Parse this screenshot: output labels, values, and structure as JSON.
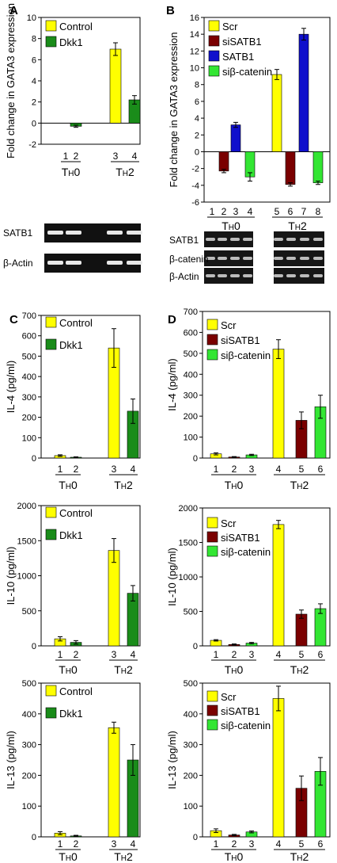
{
  "colors": {
    "control": "#ffff00",
    "dkk1": "#1a8c1a",
    "scr": "#ffff00",
    "siSATB1": "#7a0000",
    "SATB1": "#1010cc",
    "sibcat": "#33e633"
  },
  "chart_data": [
    {
      "panel": "A",
      "type": "bar",
      "ylabel": "Fold change in GATA3 expression",
      "ylim": [
        -2,
        10
      ],
      "yticks": [
        -2,
        0,
        2,
        4,
        6,
        8,
        10
      ],
      "categories": [
        "1",
        "2",
        "3",
        "4"
      ],
      "groups": [
        "TH0",
        "TH2"
      ],
      "series": [
        {
          "name": "Control",
          "color": "#ffff00",
          "points": [
            {
              "cat": "1",
              "value": 0
            },
            {
              "cat": "3",
              "value": 7.0,
              "err": 0.6
            }
          ]
        },
        {
          "name": "Dkk1",
          "color": "#1a8c1a",
          "points": [
            {
              "cat": "2",
              "value": -0.3,
              "err": 0.1
            },
            {
              "cat": "4",
              "value": 2.2,
              "err": 0.4
            }
          ]
        }
      ],
      "gel_labels": [
        "SATB1",
        "β-Actin"
      ]
    },
    {
      "panel": "B",
      "type": "bar",
      "ylabel": "Fold change in GATA3 expression",
      "ylim": [
        -6,
        16
      ],
      "yticks": [
        -6,
        -4,
        -2,
        0,
        2,
        4,
        6,
        8,
        10,
        12,
        14,
        16
      ],
      "categories": [
        "1",
        "2",
        "3",
        "4",
        "5",
        "6",
        "7",
        "8"
      ],
      "groups": [
        "TH0",
        "TH2"
      ],
      "series": [
        {
          "name": "Scr",
          "color": "#ffff00",
          "points": [
            {
              "cat": "1",
              "value": 0
            },
            {
              "cat": "5",
              "value": 9.2,
              "err": 0.6
            }
          ]
        },
        {
          "name": "siSATB1",
          "color": "#7a0000",
          "points": [
            {
              "cat": "2",
              "value": -2.3,
              "err": 0.2
            },
            {
              "cat": "6",
              "value": -3.9,
              "err": 0.2
            }
          ]
        },
        {
          "name": "SATB1",
          "color": "#1010cc",
          "points": [
            {
              "cat": "3",
              "value": 3.2,
              "err": 0.3
            },
            {
              "cat": "7",
              "value": 14.0,
              "err": 0.7
            }
          ]
        },
        {
          "name": "siβ-catenin",
          "color": "#33e633",
          "points": [
            {
              "cat": "4",
              "value": -3.0,
              "err": 0.5
            },
            {
              "cat": "8",
              "value": -3.7,
              "err": 0.2
            }
          ]
        }
      ],
      "gel_labels": [
        "SATB1",
        "β-catenin",
        "β-Actin"
      ]
    },
    {
      "panel": "C",
      "type": "bar",
      "ylabel": "IL-4 (pg/ml)",
      "ylim": [
        0,
        700
      ],
      "yticks": [
        0,
        100,
        200,
        300,
        400,
        500,
        600,
        700
      ],
      "categories": [
        "1",
        "2",
        "3",
        "4"
      ],
      "groups": [
        "TH0",
        "TH2"
      ],
      "series": [
        {
          "name": "Control",
          "color": "#ffff00",
          "points": [
            {
              "cat": "1",
              "value": 12,
              "err": 4
            },
            {
              "cat": "3",
              "value": 540,
              "err": 95
            }
          ]
        },
        {
          "name": "Dkk1",
          "color": "#1a8c1a",
          "points": [
            {
              "cat": "2",
              "value": 4,
              "err": 2
            },
            {
              "cat": "4",
              "value": 230,
              "err": 60
            }
          ]
        }
      ]
    },
    {
      "panel": "D",
      "type": "bar",
      "ylabel": "IL-4 (pg/ml)",
      "ylim": [
        0,
        700
      ],
      "yticks": [
        0,
        100,
        200,
        300,
        400,
        500,
        600,
        700
      ],
      "categories": [
        "1",
        "2",
        "3",
        "4",
        "5",
        "6"
      ],
      "groups": [
        "TH0",
        "TH2"
      ],
      "series": [
        {
          "name": "Scr",
          "color": "#ffff00",
          "points": [
            {
              "cat": "1",
              "value": 20,
              "err": 5
            },
            {
              "cat": "4",
              "value": 520,
              "err": 45
            }
          ]
        },
        {
          "name": "siSATB1",
          "color": "#7a0000",
          "points": [
            {
              "cat": "2",
              "value": 5,
              "err": 2
            },
            {
              "cat": "5",
              "value": 180,
              "err": 40
            }
          ]
        },
        {
          "name": "siβ-catenin",
          "color": "#33e633",
          "points": [
            {
              "cat": "3",
              "value": 15,
              "err": 3
            },
            {
              "cat": "6",
              "value": 245,
              "err": 55
            }
          ]
        }
      ]
    },
    {
      "panel": "C2",
      "type": "bar",
      "ylabel": "IL-10 (pg/ml)",
      "ylim": [
        0,
        2000
      ],
      "yticks": [
        0,
        500,
        1000,
        1500,
        2000
      ],
      "categories": [
        "1",
        "2",
        "3",
        "4"
      ],
      "groups": [
        "TH0",
        "TH2"
      ],
      "series": [
        {
          "name": "Control",
          "color": "#ffff00",
          "points": [
            {
              "cat": "1",
              "value": 100,
              "err": 30
            },
            {
              "cat": "3",
              "value": 1360,
              "err": 170
            }
          ]
        },
        {
          "name": "Dkk1",
          "color": "#1a8c1a",
          "points": [
            {
              "cat": "2",
              "value": 50,
              "err": 25
            },
            {
              "cat": "4",
              "value": 750,
              "err": 110
            }
          ]
        }
      ]
    },
    {
      "panel": "D2",
      "type": "bar",
      "ylabel": "IL-10 (pg/ml)",
      "ylim": [
        0,
        2000
      ],
      "yticks": [
        0,
        500,
        1000,
        1500,
        2000
      ],
      "categories": [
        "1",
        "2",
        "3",
        "4",
        "5",
        "6"
      ],
      "groups": [
        "TH0",
        "TH2"
      ],
      "series": [
        {
          "name": "Scr",
          "color": "#ffff00",
          "points": [
            {
              "cat": "1",
              "value": 80,
              "err": 10
            },
            {
              "cat": "4",
              "value": 1760,
              "err": 60
            }
          ]
        },
        {
          "name": "siSATB1",
          "color": "#7a0000",
          "points": [
            {
              "cat": "2",
              "value": 20,
              "err": 8
            },
            {
              "cat": "5",
              "value": 460,
              "err": 60
            }
          ]
        },
        {
          "name": "siβ-catenin",
          "color": "#33e633",
          "points": [
            {
              "cat": "3",
              "value": 40,
              "err": 10
            },
            {
              "cat": "6",
              "value": 540,
              "err": 70
            }
          ]
        }
      ]
    },
    {
      "panel": "C3",
      "type": "bar",
      "ylabel": "IL-13 (pg/ml)",
      "ylim": [
        0,
        500
      ],
      "yticks": [
        0,
        100,
        200,
        300,
        400,
        500
      ],
      "categories": [
        "1",
        "2",
        "3",
        "4"
      ],
      "groups": [
        "TH0",
        "TH2"
      ],
      "series": [
        {
          "name": "Control",
          "color": "#ffff00",
          "points": [
            {
              "cat": "1",
              "value": 12,
              "err": 5
            },
            {
              "cat": "3",
              "value": 355,
              "err": 18
            }
          ]
        },
        {
          "name": "Dkk1",
          "color": "#1a8c1a",
          "points": [
            {
              "cat": "2",
              "value": 3,
              "err": 2
            },
            {
              "cat": "4",
              "value": 250,
              "err": 50
            }
          ]
        }
      ]
    },
    {
      "panel": "D3",
      "type": "bar",
      "ylabel": "IL-13 (pg/ml)",
      "ylim": [
        0,
        500
      ],
      "yticks": [
        0,
        100,
        200,
        300,
        400,
        500
      ],
      "categories": [
        "1",
        "2",
        "3",
        "4",
        "5",
        "6"
      ],
      "groups": [
        "TH0",
        "TH2"
      ],
      "series": [
        {
          "name": "Scr",
          "color": "#ffff00",
          "points": [
            {
              "cat": "1",
              "value": 20,
              "err": 6
            },
            {
              "cat": "4",
              "value": 450,
              "err": 40
            }
          ]
        },
        {
          "name": "siSATB1",
          "color": "#7a0000",
          "points": [
            {
              "cat": "2",
              "value": 6,
              "err": 2
            },
            {
              "cat": "5",
              "value": 158,
              "err": 40
            }
          ]
        },
        {
          "name": "siβ-catenin",
          "color": "#33e633",
          "points": [
            {
              "cat": "3",
              "value": 16,
              "err": 3
            },
            {
              "cat": "6",
              "value": 213,
              "err": 45
            }
          ]
        }
      ]
    }
  ],
  "panel_letters": [
    "A",
    "B",
    "C",
    "D"
  ]
}
